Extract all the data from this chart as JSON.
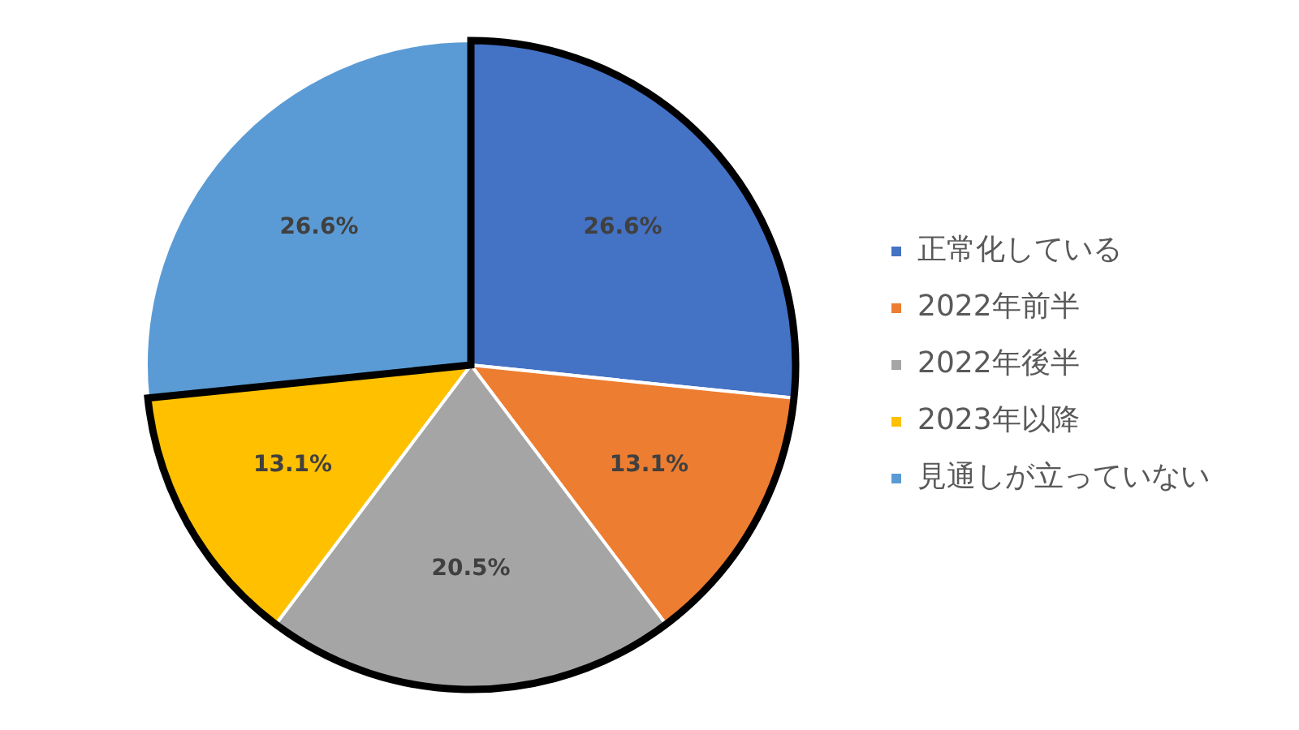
{
  "chart_data": {
    "type": "pie",
    "categories": [
      "正常化している",
      "2022年前半",
      "2022年後半",
      "2023年以降",
      "見通しが立っていない"
    ],
    "values": [
      26.6,
      13.1,
      20.5,
      13.1,
      26.6
    ],
    "colors": [
      "#4472c4",
      "#ed7d31",
      "#a5a5a5",
      "#ffc000",
      "#5b9bd5"
    ],
    "value_labels": [
      "26.6%",
      "13.1%",
      "20.5%",
      "13.1%",
      "26.6%"
    ],
    "legend": "right"
  }
}
